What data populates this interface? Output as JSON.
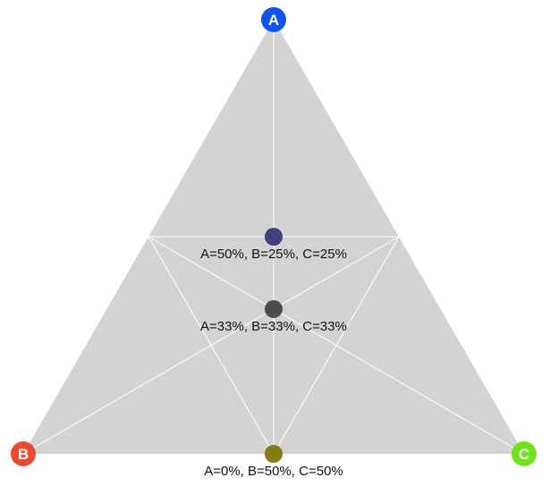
{
  "diagram": {
    "type": "ternary",
    "background_color": "#d3d3d3",
    "guide_color": "#ffffff",
    "vertices": [
      {
        "id": "A",
        "label": "A",
        "color": "#1254f2"
      },
      {
        "id": "B",
        "label": "B",
        "color": "#ea4a33"
      },
      {
        "id": "C",
        "label": "C",
        "color": "#6fe31c"
      }
    ],
    "points": [
      {
        "label": "A=50%, B=25%, C=25%",
        "a": 0.5,
        "b": 0.25,
        "c": 0.25,
        "color": "#3b4379"
      },
      {
        "label": "A=33%, B=33%, C=33%",
        "a": 0.3333,
        "b": 0.3333,
        "c": 0.3333,
        "color": "#4d4d4d"
      },
      {
        "label": "A=0%, B=50%, C=50%",
        "a": 0.0,
        "b": 0.5,
        "c": 0.5,
        "color": "#837c14"
      }
    ]
  }
}
